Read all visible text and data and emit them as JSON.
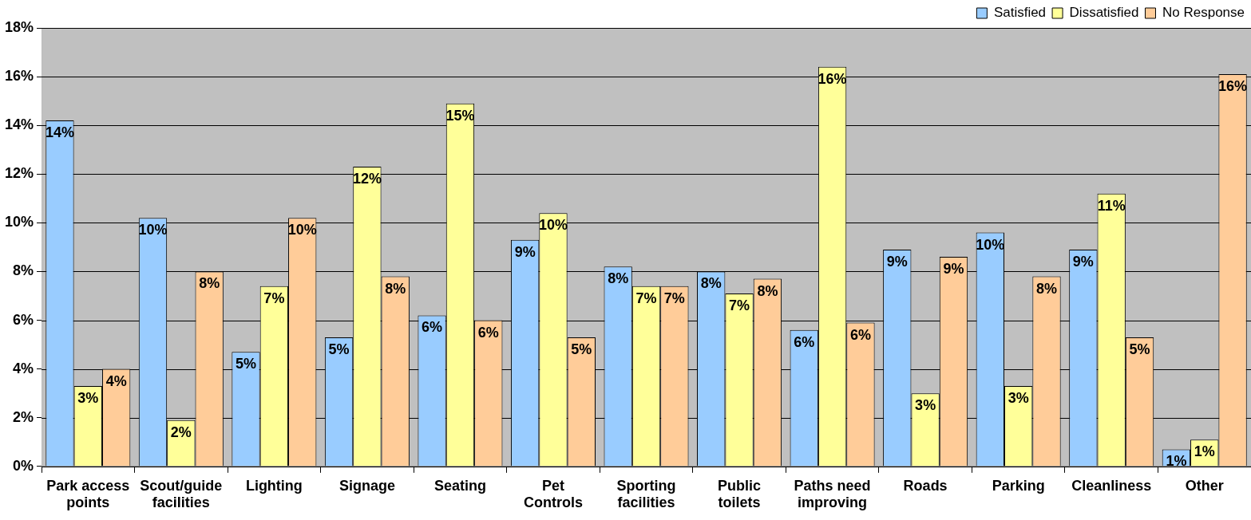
{
  "chart_data": {
    "type": "bar",
    "categories": [
      "Park access points",
      "Scout/guide facilities",
      "Lighting",
      "Signage",
      "Seating",
      "Pet Controls",
      "Sporting facilities",
      "Public toilets",
      "Paths need improving",
      "Roads",
      "Parking",
      "Cleanliness",
      "Other"
    ],
    "series": [
      {
        "name": "Satisfied",
        "color": "#99ccff",
        "values": [
          14.2,
          10.2,
          4.7,
          5.3,
          6.2,
          9.3,
          8.2,
          8.0,
          5.6,
          8.9,
          9.6,
          8.9,
          0.7
        ],
        "value_labels": [
          "14%",
          "10%",
          "5%",
          "5%",
          "6%",
          "9%",
          "8%",
          "8%",
          "6%",
          "9%",
          "10%",
          "9%",
          "1%"
        ]
      },
      {
        "name": "Dissatisfied",
        "color": "#ffff99",
        "values": [
          3.3,
          1.9,
          7.4,
          12.3,
          14.9,
          10.4,
          7.4,
          7.1,
          16.4,
          3.0,
          3.3,
          11.2,
          1.1
        ],
        "value_labels": [
          "3%",
          "2%",
          "7%",
          "12%",
          "15%",
          "10%",
          "7%",
          "7%",
          "16%",
          "3%",
          "3%",
          "11%",
          "1%"
        ]
      },
      {
        "name": "No Response",
        "color": "#ffcc99",
        "values": [
          4.0,
          8.0,
          10.2,
          7.8,
          6.0,
          5.3,
          7.4,
          7.7,
          5.9,
          8.6,
          7.8,
          5.3,
          16.1
        ],
        "value_labels": [
          "4%",
          "8%",
          "10%",
          "8%",
          "6%",
          "5%",
          "7%",
          "8%",
          "6%",
          "9%",
          "8%",
          "5%",
          "16%"
        ]
      }
    ],
    "ylim": [
      0,
      18
    ],
    "yticks": [
      {
        "value": 0,
        "label": "0%"
      },
      {
        "value": 2,
        "label": "2%"
      },
      {
        "value": 4,
        "label": "4%"
      },
      {
        "value": 6,
        "label": "6%"
      },
      {
        "value": 8,
        "label": "8%"
      },
      {
        "value": 10,
        "label": "10%"
      },
      {
        "value": 12,
        "label": "12%"
      },
      {
        "value": 14,
        "label": "14%"
      },
      {
        "value": 16,
        "label": "16%"
      },
      {
        "value": 18,
        "label": "18%"
      }
    ],
    "grid": "y",
    "legend": "top right"
  }
}
